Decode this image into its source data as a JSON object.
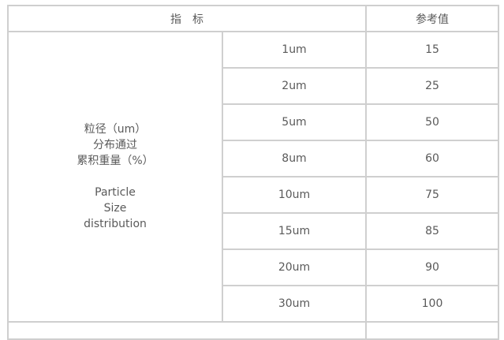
{
  "header": {
    "indicator": "指　标",
    "reference": "参考值"
  },
  "property_label": {
    "zh": [
      "粒径（um）",
      "分布通过",
      "累积重量（%）"
    ],
    "en": [
      "Particle",
      "Size",
      "distribution"
    ]
  },
  "rows": [
    {
      "size": "1um",
      "value": "15"
    },
    {
      "size": "2um",
      "value": "25"
    },
    {
      "size": "5um",
      "value": "50"
    },
    {
      "size": "8um",
      "value": "60"
    },
    {
      "size": "10um",
      "value": "75"
    },
    {
      "size": "15um",
      "value": "85"
    },
    {
      "size": "20um",
      "value": "90"
    },
    {
      "size": "30um",
      "value": "100"
    }
  ]
}
